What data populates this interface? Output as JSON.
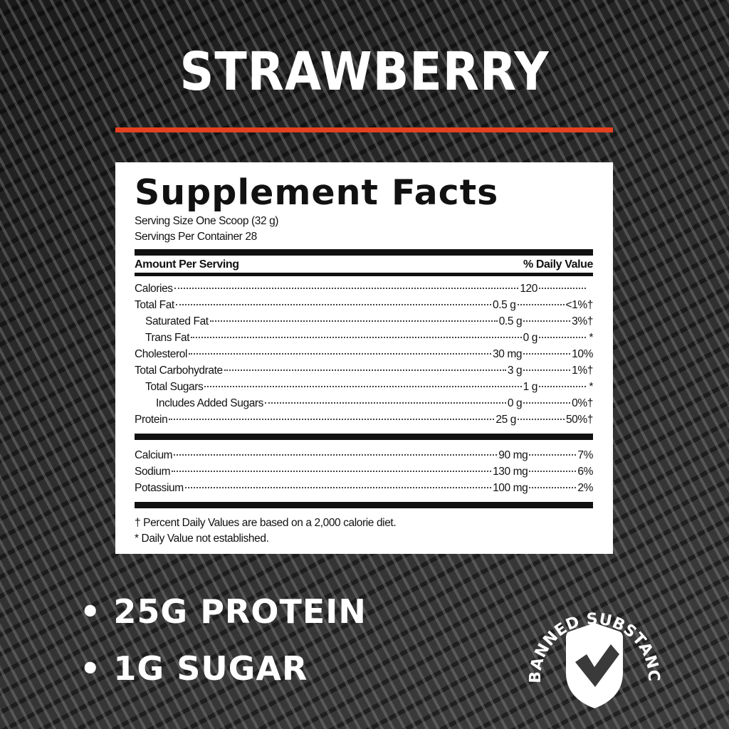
{
  "flavor": "STRAWBERRY",
  "accent_color": "#e5401f",
  "facts": {
    "title": "Supplement Facts",
    "serving_size": "Serving Size One Scoop (32 g)",
    "servings_per_container": "Servings Per Container 28",
    "header_left": "Amount Per Serving",
    "header_right": "% Daily Value",
    "rows": [
      {
        "name": "Calories",
        "amount": "120",
        "dv": ""
      },
      {
        "name": "Total Fat",
        "amount": "0.5 g",
        "dv": "<1%†"
      },
      {
        "name": "Saturated Fat",
        "amount": "0.5 g",
        "dv": "3%†"
      },
      {
        "name": "Trans Fat",
        "amount": "0 g",
        "dv": "*"
      },
      {
        "name": "Cholesterol",
        "amount": "30 mg",
        "dv": "10%"
      },
      {
        "name": "Total Carbohydrate",
        "amount": "3 g",
        "dv": "1%†"
      },
      {
        "name": "Total Sugars",
        "amount": "1 g",
        "dv": "*"
      },
      {
        "name": "Includes Added Sugars",
        "amount": "0 g",
        "dv": "0%†"
      },
      {
        "name": "Protein",
        "amount": "25 g",
        "dv": "50%†"
      }
    ],
    "minerals": [
      {
        "name": "Calcium",
        "amount": "90 mg",
        "dv": "7%"
      },
      {
        "name": "Sodium",
        "amount": "130 mg",
        "dv": "6%"
      },
      {
        "name": "Potassium",
        "amount": "100 mg",
        "dv": "2%"
      }
    ],
    "footnote1": "† Percent Daily Values are based on a 2,000 calorie diet.",
    "footnote2": "* Daily Value not established."
  },
  "claims": [
    "• 25G PROTEIN",
    "• 1G SUGAR"
  ],
  "badge": {
    "text": "BANNED SUBSTANCE TESTED.",
    "icon": "shield-check-icon"
  }
}
